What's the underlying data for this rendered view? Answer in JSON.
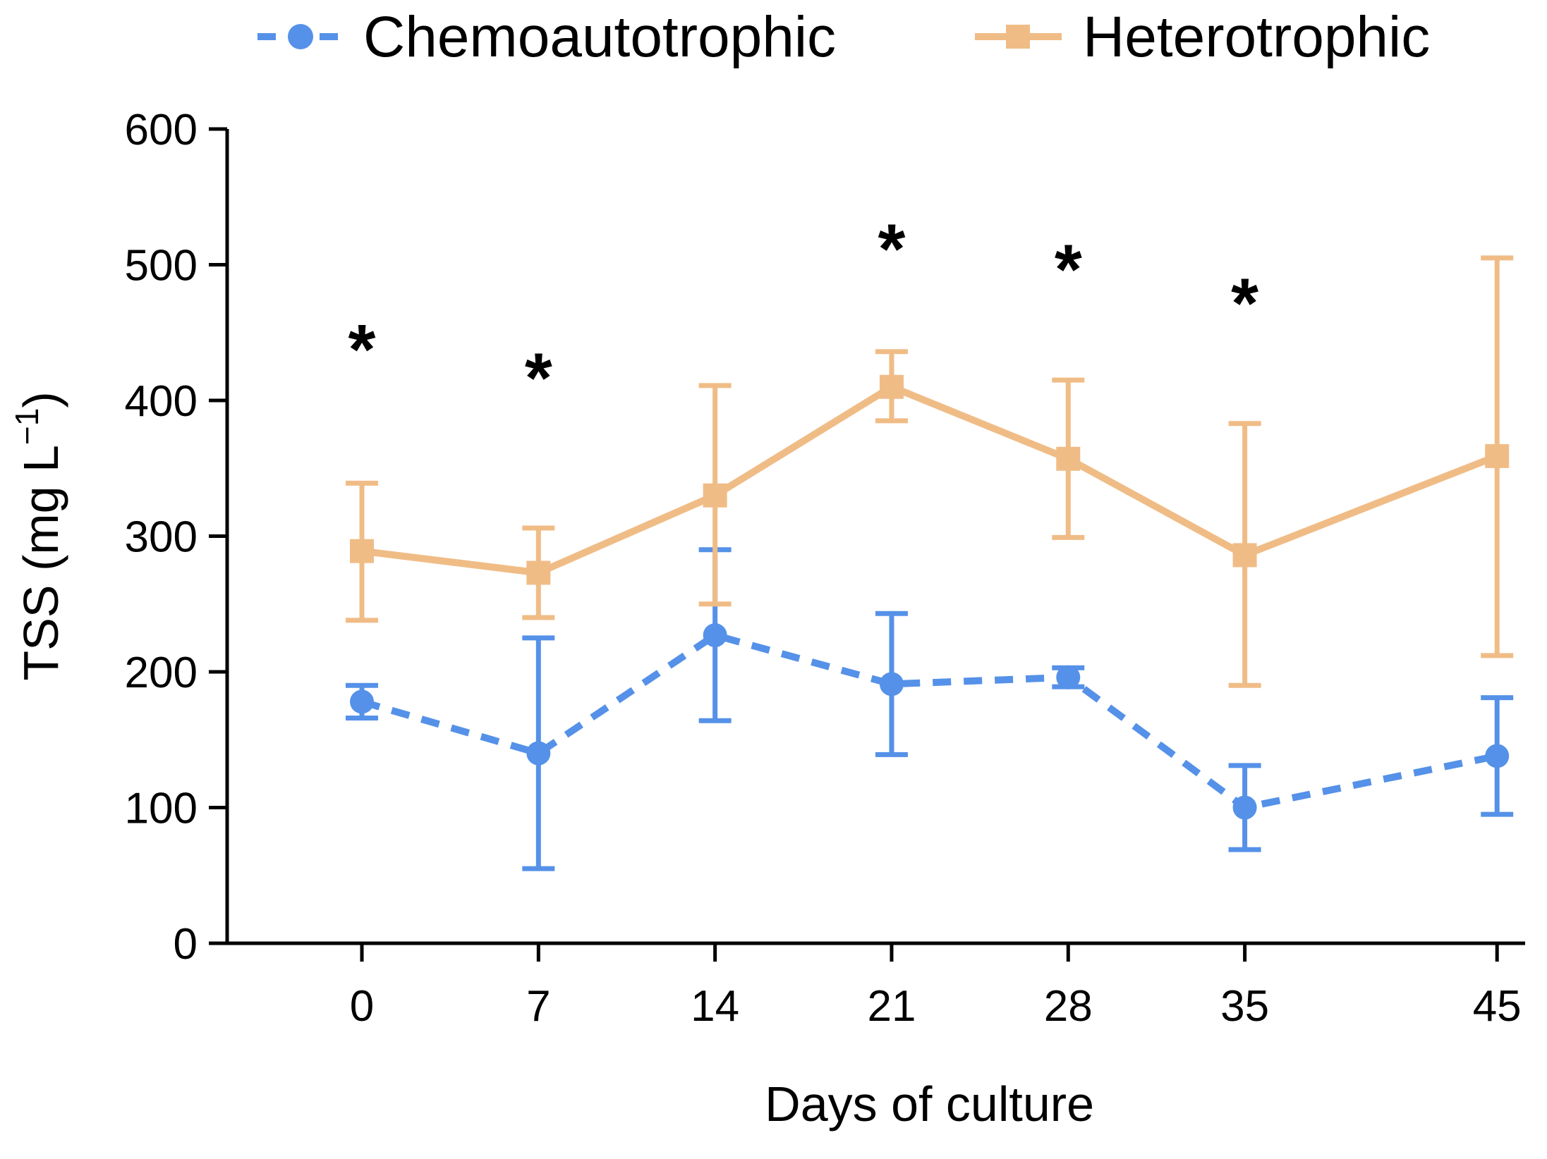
{
  "chart_data": {
    "type": "line",
    "title": "",
    "xlabel": "Days of culture",
    "ylabel": "TSS (mg L⁻¹)",
    "ylabel_parts": {
      "main": "TSS (mg L",
      "sup": "−1",
      "end": ")"
    },
    "x": [
      0,
      7,
      14,
      21,
      28,
      35,
      45
    ],
    "x_tick_labels": [
      "0",
      "7",
      "14",
      "21",
      "28",
      "35",
      "45"
    ],
    "ylim": [
      0,
      600
    ],
    "yticks": [
      0,
      100,
      200,
      300,
      400,
      500,
      600
    ],
    "y_tick_labels": [
      "0",
      "100",
      "200",
      "300",
      "400",
      "500",
      "600"
    ],
    "grid": false,
    "legend_position": "top",
    "series": [
      {
        "name": "Chemoautotrophic",
        "color": "#5591E8",
        "line_style": "dashed",
        "marker": "circle",
        "values": [
          178,
          140,
          227,
          191,
          196,
          100,
          138
        ],
        "err_lo": [
          166,
          55,
          164,
          139,
          189,
          69,
          95
        ],
        "err_hi": [
          190,
          225,
          290,
          243,
          203,
          131,
          181
        ]
      },
      {
        "name": "Heterotrophic",
        "color": "#F0BC86",
        "line_style": "solid",
        "marker": "square",
        "values": [
          289,
          273,
          330,
          410,
          357,
          286,
          359
        ],
        "err_lo": [
          238,
          240,
          250,
          385,
          299,
          190,
          212
        ],
        "err_hi": [
          339,
          306,
          411,
          436,
          415,
          383,
          505
        ]
      }
    ],
    "significance": {
      "symbol": "*",
      "marks": [
        {
          "day": 0,
          "value": 451
        },
        {
          "day": 7,
          "value": 430
        },
        {
          "day": 21,
          "value": 525
        },
        {
          "day": 28,
          "value": 510
        },
        {
          "day": 35,
          "value": 485
        }
      ]
    }
  }
}
